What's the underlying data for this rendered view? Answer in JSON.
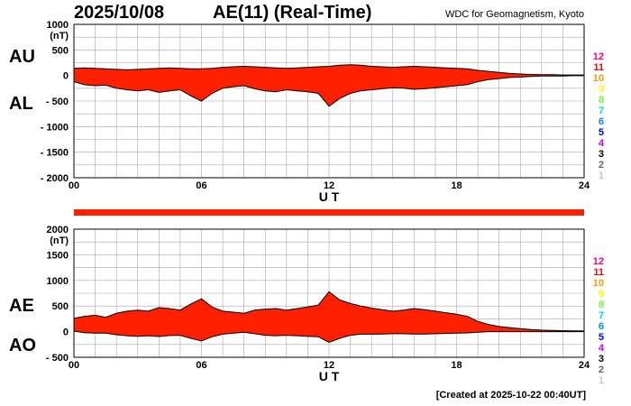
{
  "header": {
    "date": "2025/10/08",
    "title": "AE(11) (Real-Time)",
    "source": "WDC for Geomagnetism, Kyoto",
    "created": "[Created at 2025-10-22 00:40UT]"
  },
  "colors": {
    "fill": "#ff2000",
    "outline": "#000000",
    "grid": "#a8a8a8",
    "bar": "#ff2000"
  },
  "legend": {
    "labels": [
      "12",
      "11",
      "10",
      "9",
      "8",
      "7",
      "6",
      "5",
      "4",
      "3",
      "2",
      "1"
    ],
    "colors": [
      "#ff0080",
      "#ff0000",
      "#ff9900",
      "#ffff00",
      "#66ff33",
      "#00dddd",
      "#0088ff",
      "#0000ff",
      "#cc00ff",
      "#000000",
      "#666666",
      "#c8c8c8"
    ]
  },
  "chart_data": [
    {
      "type": "area",
      "panel": "AU/AL",
      "labels": {
        "upper": "AU",
        "lower": "AL"
      },
      "unit": "(nT)",
      "xlabel": "U T",
      "xlim": [
        0,
        24
      ],
      "ylim": [
        -2000,
        1000
      ],
      "xticks": [
        0,
        6,
        12,
        18,
        24
      ],
      "xtick_labels": [
        "00",
        "06",
        "12",
        "18",
        "24"
      ],
      "yticks": [
        1000,
        500,
        0,
        -500,
        -1000,
        -1500,
        -2000
      ],
      "ytick_labels": [
        "1000",
        "500",
        "0",
        "- 500",
        "- 1000",
        "- 1500",
        "- 2000"
      ],
      "hours": [
        0,
        0.5,
        1,
        1.5,
        2,
        2.5,
        3,
        3.5,
        4,
        4.5,
        5,
        5.5,
        6,
        6.5,
        7,
        7.5,
        8,
        8.5,
        9,
        9.5,
        10,
        10.5,
        11,
        11.5,
        12,
        12.5,
        13,
        13.5,
        14,
        14.5,
        15,
        15.5,
        16,
        16.5,
        17,
        17.5,
        18,
        18.5,
        19,
        19.5,
        20,
        20.5,
        21,
        21.5,
        22,
        22.5,
        23,
        23.5,
        24
      ],
      "series": [
        {
          "name": "AU",
          "values": [
            140,
            150,
            140,
            130,
            120,
            110,
            120,
            130,
            140,
            150,
            140,
            130,
            130,
            140,
            160,
            170,
            180,
            170,
            160,
            150,
            140,
            150,
            160,
            170,
            180,
            200,
            210,
            200,
            180,
            170,
            160,
            170,
            180,
            170,
            160,
            150,
            140,
            130,
            100,
            80,
            60,
            40,
            30,
            20,
            15,
            15,
            10,
            10,
            10
          ]
        },
        {
          "name": "AL",
          "values": [
            -120,
            -180,
            -200,
            -190,
            -250,
            -280,
            -300,
            -280,
            -330,
            -300,
            -280,
            -400,
            -500,
            -350,
            -250,
            -220,
            -200,
            -260,
            -300,
            -320,
            -280,
            -300,
            -320,
            -350,
            -600,
            -450,
            -350,
            -300,
            -280,
            -260,
            -240,
            -250,
            -270,
            -260,
            -240,
            -220,
            -200,
            -180,
            -120,
            -80,
            -60,
            -40,
            -30,
            -20,
            -10,
            -10,
            -10,
            -5,
            -5
          ]
        }
      ]
    },
    {
      "type": "area",
      "panel": "AE/AO",
      "labels": {
        "upper": "AE",
        "lower": "AO"
      },
      "unit": "(nT)",
      "xlabel": "U T",
      "xlim": [
        0,
        24
      ],
      "ylim": [
        -500,
        2000
      ],
      "xticks": [
        0,
        6,
        12,
        18,
        24
      ],
      "xtick_labels": [
        "00",
        "06",
        "12",
        "18",
        "24"
      ],
      "yticks": [
        2000,
        1500,
        1000,
        500,
        0,
        -500
      ],
      "ytick_labels": [
        "2000",
        "1500",
        "1000",
        "500",
        "0",
        "- 500"
      ],
      "hours": [
        0,
        0.5,
        1,
        1.5,
        2,
        2.5,
        3,
        3.5,
        4,
        4.5,
        5,
        5.5,
        6,
        6.5,
        7,
        7.5,
        8,
        8.5,
        9,
        9.5,
        10,
        10.5,
        11,
        11.5,
        12,
        12.5,
        13,
        13.5,
        14,
        14.5,
        15,
        15.5,
        16,
        16.5,
        17,
        17.5,
        18,
        18.5,
        19,
        19.5,
        20,
        20.5,
        21,
        21.5,
        22,
        22.5,
        23,
        23.5,
        24
      ],
      "series": [
        {
          "name": "AE",
          "values": [
            260,
            300,
            320,
            280,
            360,
            400,
            420,
            400,
            470,
            450,
            420,
            540,
            640,
            480,
            400,
            380,
            360,
            420,
            440,
            450,
            420,
            450,
            480,
            520,
            780,
            620,
            550,
            500,
            460,
            430,
            400,
            420,
            450,
            430,
            400,
            370,
            340,
            300,
            200,
            140,
            100,
            80,
            60,
            40,
            30,
            25,
            20,
            15,
            15
          ]
        },
        {
          "name": "AO",
          "values": [
            10,
            -20,
            -30,
            -30,
            -60,
            -80,
            -90,
            -80,
            -95,
            -75,
            -70,
            -130,
            -180,
            -100,
            -50,
            -30,
            -10,
            -40,
            -70,
            -80,
            -70,
            -80,
            -90,
            -100,
            -210,
            -130,
            -70,
            -50,
            -50,
            -45,
            -40,
            -40,
            -45,
            -45,
            -40,
            -35,
            -30,
            -25,
            -10,
            0,
            0,
            0,
            0,
            0,
            0,
            0,
            0,
            0,
            0
          ]
        }
      ]
    }
  ]
}
